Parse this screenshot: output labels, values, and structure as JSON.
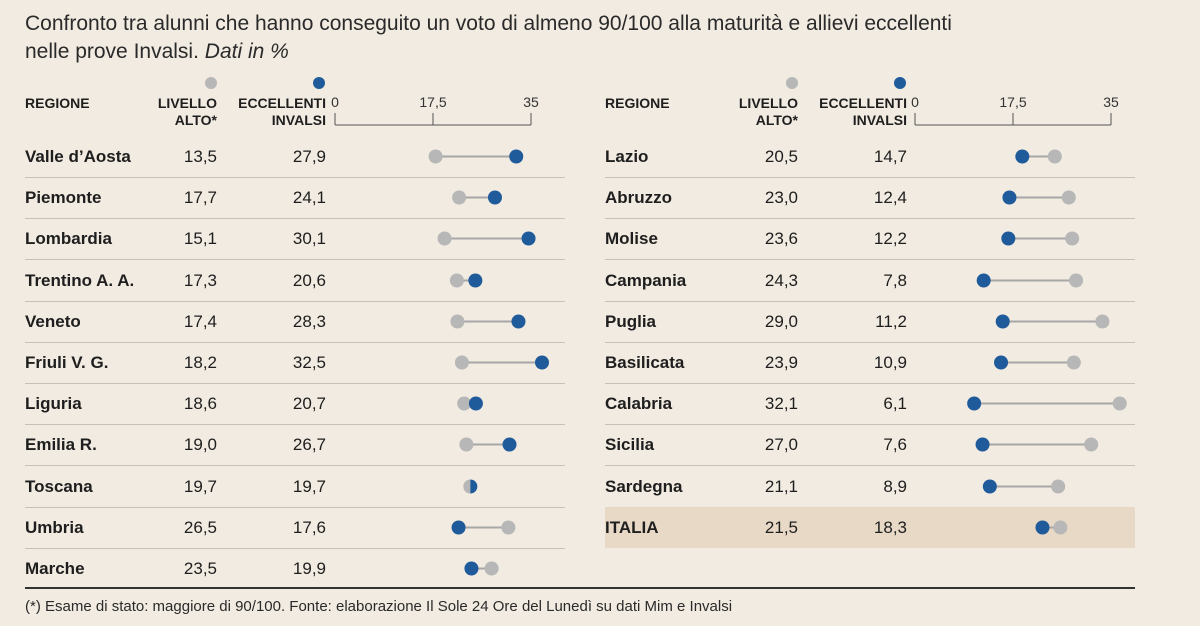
{
  "title_main": "Confronto tra alunni che hanno conseguito un voto di almeno 90/100 alla maturità e allievi eccellenti",
  "title_line2": "nelle prove Invalsi.",
  "title_italic": "Dati in %",
  "headers": {
    "regione": "REGIONE",
    "livello_1": "LIVELLO",
    "livello_2": "ALTO*",
    "eccellenti_1": "ECCELLENTI",
    "eccellenti_2": "INVALSI"
  },
  "colors": {
    "livello": "#b7b7b7",
    "eccellenti": "#1f5b9a",
    "line": "#a7a7a7"
  },
  "chart_data": {
    "type": "dot-plot",
    "xlim": [
      0,
      35
    ],
    "ticks": [
      "0",
      "17,5",
      "35"
    ],
    "tick_values": [
      0,
      17.5,
      35
    ],
    "series": [
      {
        "name": "LIVELLO ALTO*",
        "key": "livello"
      },
      {
        "name": "ECCELLENTI INVALSI",
        "key": "eccellenti"
      }
    ],
    "left": [
      {
        "regione": "Valle d’Aosta",
        "livello": "13,5",
        "eccellenti": "27,9",
        "lv": 13.5,
        "ec": 27.9
      },
      {
        "regione": "Piemonte",
        "livello": "17,7",
        "eccellenti": "24,1",
        "lv": 17.7,
        "ec": 24.1
      },
      {
        "regione": "Lombardia",
        "livello": "15,1",
        "eccellenti": "30,1",
        "lv": 15.1,
        "ec": 30.1
      },
      {
        "regione": "Trentino A. A.",
        "livello": "17,3",
        "eccellenti": "20,6",
        "lv": 17.3,
        "ec": 20.6
      },
      {
        "regione": "Veneto",
        "livello": "17,4",
        "eccellenti": "28,3",
        "lv": 17.4,
        "ec": 28.3
      },
      {
        "regione": "Friuli V. G.",
        "livello": "18,2",
        "eccellenti": "32,5",
        "lv": 18.2,
        "ec": 32.5
      },
      {
        "regione": "Liguria",
        "livello": "18,6",
        "eccellenti": "20,7",
        "lv": 18.6,
        "ec": 20.7
      },
      {
        "regione": "Emilia R.",
        "livello": "19,0",
        "eccellenti": "26,7",
        "lv": 19.0,
        "ec": 26.7
      },
      {
        "regione": "Toscana",
        "livello": "19,7",
        "eccellenti": "19,7",
        "lv": 19.7,
        "ec": 19.7
      },
      {
        "regione": "Umbria",
        "livello": "26,5",
        "eccellenti": "17,6",
        "lv": 26.5,
        "ec": 17.6
      },
      {
        "regione": "Marche",
        "livello": "23,5",
        "eccellenti": "19,9",
        "lv": 23.5,
        "ec": 19.9
      }
    ],
    "right": [
      {
        "regione": "Lazio",
        "livello": "20,5",
        "eccellenti": "14,7",
        "lv": 20.5,
        "ec": 14.7
      },
      {
        "regione": "Abruzzo",
        "livello": "23,0",
        "eccellenti": "12,4",
        "lv": 23.0,
        "ec": 12.4
      },
      {
        "regione": "Molise",
        "livello": "23,6",
        "eccellenti": "12,2",
        "lv": 23.6,
        "ec": 12.2
      },
      {
        "regione": "Campania",
        "livello": "24,3",
        "eccellenti": "7,8",
        "lv": 24.3,
        "ec": 7.8
      },
      {
        "regione": "Puglia",
        "livello": "29,0",
        "eccellenti": "11,2",
        "lv": 29.0,
        "ec": 11.2
      },
      {
        "regione": "Basilicata",
        "livello": "23,9",
        "eccellenti": "10,9",
        "lv": 23.9,
        "ec": 10.9
      },
      {
        "regione": "Calabria",
        "livello": "32,1",
        "eccellenti": "6,1",
        "lv": 32.1,
        "ec": 6.1
      },
      {
        "regione": "Sicilia",
        "livello": "27,0",
        "eccellenti": "7,6",
        "lv": 27.0,
        "ec": 7.6
      },
      {
        "regione": "Sardegna",
        "livello": "21,1",
        "eccellenti": "8,9",
        "lv": 21.1,
        "ec": 8.9
      },
      {
        "regione": "ITALIA",
        "livello": "21,5",
        "eccellenti": "18,3",
        "lv": 21.5,
        "ec": 18.3,
        "highlight": true
      }
    ]
  },
  "footer": "(*) Esame di stato: maggiore di 90/100. Fonte: elaborazione Il Sole 24 Ore del Lunedì su dati Mim e Invalsi"
}
